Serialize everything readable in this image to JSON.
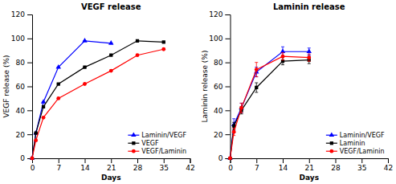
{
  "chart_data": [
    {
      "type": "line",
      "title": "VEGF release",
      "xlabel": "Days",
      "ylabel": "VEGF release (%)",
      "xlim": [
        0,
        42
      ],
      "ylim": [
        0,
        120
      ],
      "xticks": [
        0,
        7,
        14,
        21,
        28,
        35,
        42
      ],
      "yticks": [
        0,
        20,
        40,
        60,
        80,
        100,
        120
      ],
      "grid": false,
      "legend": "lower right",
      "series": [
        {
          "name": "Laminin/VEGF",
          "color": "#0000ff",
          "marker": "triangle",
          "x": [
            0,
            1,
            3,
            7,
            14,
            21
          ],
          "values": [
            0,
            21,
            47,
            76,
            98,
            96
          ],
          "yerr": [
            0,
            0,
            0,
            0,
            0,
            0
          ]
        },
        {
          "name": "VEGF",
          "color": "#000000",
          "marker": "square",
          "x": [
            0,
            1,
            3,
            7,
            14,
            21,
            28,
            35
          ],
          "values": [
            0,
            21,
            43,
            62,
            76,
            86,
            98,
            97
          ],
          "yerr": [
            0,
            0,
            0,
            0,
            0,
            0,
            0,
            0
          ]
        },
        {
          "name": "VEGF/Laminin",
          "color": "#ff0000",
          "marker": "circle",
          "x": [
            0,
            1,
            3,
            7,
            14,
            21,
            28,
            35
          ],
          "values": [
            0,
            15,
            34,
            50,
            62,
            73,
            86,
            91
          ],
          "yerr": [
            0,
            0,
            0,
            0,
            0,
            0,
            0,
            0
          ]
        }
      ]
    },
    {
      "type": "line",
      "title": "Laminin release",
      "xlabel": "Days",
      "ylabel": "Laminin release (%)",
      "xlim": [
        0,
        42
      ],
      "ylim": [
        0,
        120
      ],
      "xticks": [
        0,
        7,
        14,
        21,
        28,
        35,
        42
      ],
      "yticks": [
        0,
        20,
        40,
        60,
        80,
        100,
        120
      ],
      "grid": false,
      "legend": "lower right",
      "series": [
        {
          "name": "Laminin/VEGF",
          "color": "#0000ff",
          "marker": "triangle",
          "x": [
            0,
            1,
            3,
            7,
            14,
            21
          ],
          "values": [
            0,
            28,
            42,
            72,
            89,
            89
          ],
          "yerr": [
            0,
            5,
            4,
            4,
            4,
            3
          ]
        },
        {
          "name": "Laminin",
          "color": "#000000",
          "marker": "square",
          "x": [
            0,
            1,
            3,
            7,
            14,
            21
          ],
          "values": [
            0,
            27,
            40,
            59,
            81,
            82
          ],
          "yerr": [
            0,
            3,
            3,
            4,
            3,
            3
          ]
        },
        {
          "name": "VEGF/Laminin",
          "color": "#ff0000",
          "marker": "circle",
          "x": [
            0,
            1,
            3,
            7,
            14,
            21
          ],
          "values": [
            0,
            22,
            42,
            74,
            85,
            84
          ],
          "yerr": [
            0,
            3,
            4,
            6,
            3,
            3
          ]
        }
      ]
    }
  ]
}
